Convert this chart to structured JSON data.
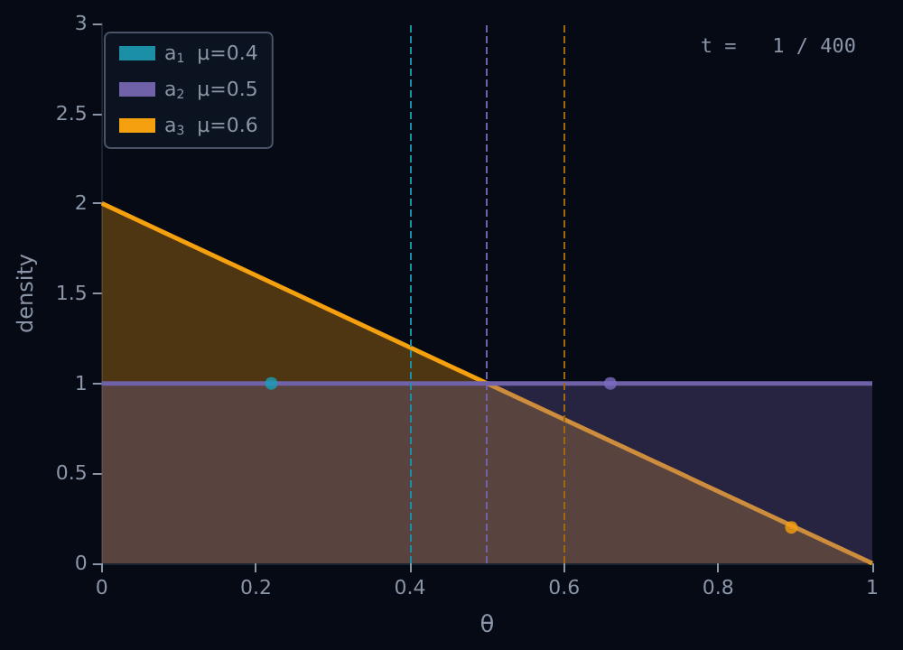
{
  "chart_data": {
    "type": "area",
    "xlabel": "θ",
    "ylabel": "density",
    "xlim": [
      0,
      1
    ],
    "xticks": [
      0,
      0.2,
      0.4,
      0.6,
      0.8,
      1
    ],
    "ylim": [
      0,
      3
    ],
    "yticks": [
      0,
      0.5,
      1,
      1.5,
      2,
      2.5,
      3
    ],
    "grid": false,
    "legend": "top left",
    "annotations": [
      "t =   1 / 400"
    ],
    "series": [
      {
        "name": "a$_{1}$  μ=0.4",
        "color": "#1b8fa6",
        "values": [
          null,
          null
        ],
        "marker": "none"
      },
      {
        "name": "a$_{2}$  μ=0.5",
        "color": "#6f62a8",
        "x": [
          0,
          1
        ],
        "values": [
          1,
          1
        ],
        "marker": "none"
      },
      {
        "name": "a$_{3}$  μ=0.6",
        "color": "#f5a00f",
        "x": [
          0,
          1
        ],
        "values": [
          2,
          0
        ],
        "marker": "none"
      },
      {
        "type": "scatter",
        "color": "#1b9fb6",
        "x": [
          0.22
        ],
        "values": [
          1
        ],
        "marker": "circle"
      },
      {
        "type": "scatter",
        "color": "#7b6cc0",
        "x": [
          0.66
        ],
        "values": [
          1
        ],
        "marker": "circle"
      },
      {
        "type": "scatter",
        "color": "#f5a00f",
        "x": [
          0.895
        ],
        "values": [
          0.2
        ],
        "marker": "circle"
      }
    ],
    "ref_lines": [
      {
        "axis": "x",
        "value": 0.4,
        "color": "#1b8fa6",
        "line_style": "dashed"
      },
      {
        "axis": "x",
        "value": 0.5,
        "color": "#6f62a8",
        "line_style": "dashed"
      },
      {
        "axis": "x",
        "value": 0.6,
        "color": "#a0680a",
        "line_style": "dashed"
      }
    ]
  }
}
